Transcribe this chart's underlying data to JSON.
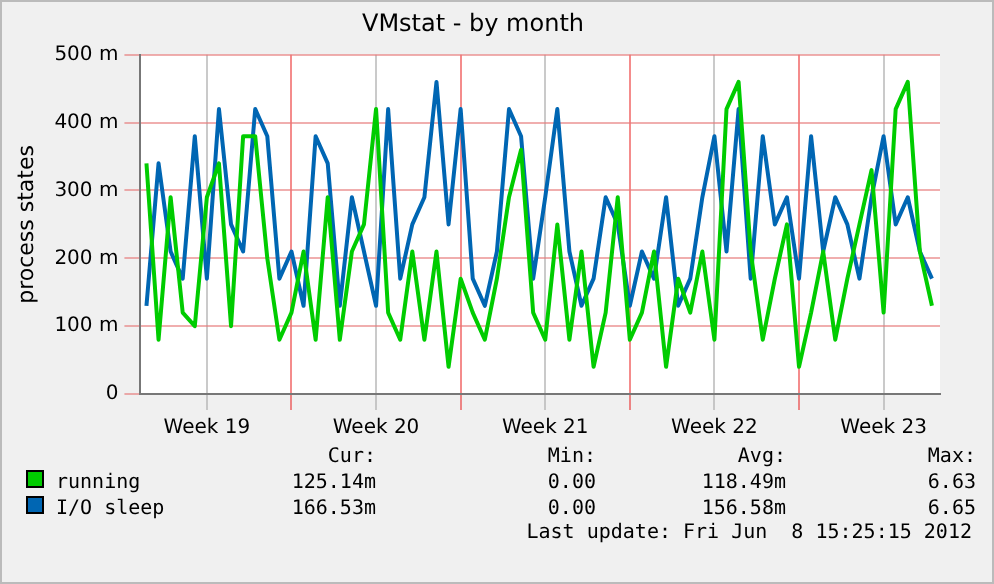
{
  "chart_data": {
    "type": "line",
    "title": "VMstat - by month",
    "ylabel": "process states",
    "x": [
      "2012-05-08T00:00",
      "2012-05-08T12:00",
      "2012-05-09T00:00",
      "2012-05-09T12:00",
      "2012-05-10T00:00",
      "2012-05-10T12:00",
      "2012-05-11T00:00",
      "2012-05-11T12:00",
      "2012-05-12T00:00",
      "2012-05-12T12:00",
      "2012-05-13T00:00",
      "2012-05-13T12:00",
      "2012-05-14T00:00",
      "2012-05-14T12:00",
      "2012-05-15T00:00",
      "2012-05-15T12:00",
      "2012-05-16T00:00",
      "2012-05-16T12:00",
      "2012-05-17T00:00",
      "2012-05-17T12:00",
      "2012-05-18T00:00",
      "2012-05-18T12:00",
      "2012-05-19T00:00",
      "2012-05-19T12:00",
      "2012-05-20T00:00",
      "2012-05-20T12:00",
      "2012-05-21T00:00",
      "2012-05-21T12:00",
      "2012-05-22T00:00",
      "2012-05-22T12:00",
      "2012-05-23T00:00",
      "2012-05-23T12:00",
      "2012-05-24T00:00",
      "2012-05-24T12:00",
      "2012-05-25T00:00",
      "2012-05-25T12:00",
      "2012-05-26T00:00",
      "2012-05-26T12:00",
      "2012-05-27T00:00",
      "2012-05-27T12:00",
      "2012-05-28T00:00",
      "2012-05-28T12:00",
      "2012-05-29T00:00",
      "2012-05-29T12:00",
      "2012-05-30T00:00",
      "2012-05-30T12:00",
      "2012-05-31T00:00",
      "2012-05-31T12:00",
      "2012-06-01T00:00",
      "2012-06-01T12:00",
      "2012-06-02T00:00",
      "2012-06-02T12:00",
      "2012-06-03T00:00",
      "2012-06-03T12:00",
      "2012-06-04T00:00",
      "2012-06-04T12:00",
      "2012-06-05T00:00",
      "2012-06-05T12:00",
      "2012-06-06T00:00",
      "2012-06-06T12:00",
      "2012-06-07T00:00",
      "2012-06-07T12:00",
      "2012-06-08T00:00",
      "2012-06-08T12:00",
      "2012-06-09T00:00",
      "2012-06-09T12:00"
    ],
    "series": [
      {
        "name": "running",
        "color": "#00cc00",
        "values": [
          340,
          80,
          290,
          120,
          100,
          290,
          340,
          100,
          380,
          380,
          200,
          80,
          120,
          210,
          80,
          290,
          80,
          210,
          250,
          420,
          120,
          80,
          210,
          80,
          210,
          40,
          170,
          120,
          80,
          170,
          290,
          360,
          120,
          80,
          250,
          80,
          210,
          40,
          120,
          290,
          80,
          120,
          210,
          40,
          170,
          120,
          210,
          80,
          420,
          460,
          210,
          80,
          170,
          250,
          40,
          120,
          210,
          80,
          170,
          250,
          330,
          120,
          420,
          460,
          210,
          130
        ]
      },
      {
        "name": "I/O sleep",
        "color": "#0066b3",
        "values": [
          130,
          340,
          210,
          170,
          380,
          170,
          420,
          250,
          210,
          420,
          380,
          170,
          210,
          130,
          380,
          340,
          130,
          290,
          210,
          130,
          420,
          170,
          250,
          290,
          460,
          250,
          420,
          170,
          130,
          210,
          420,
          380,
          170,
          290,
          420,
          210,
          130,
          170,
          290,
          250,
          130,
          210,
          170,
          290,
          130,
          170,
          290,
          380,
          210,
          420,
          170,
          380,
          250,
          290,
          170,
          380,
          210,
          290,
          250,
          170,
          290,
          380,
          250,
          290,
          210,
          170
        ]
      }
    ],
    "xlim": [
      "2012-05-07T18:00",
      "2012-06-09T20:00"
    ],
    "xticks": [
      {
        "value": "2012-05-10T12:00",
        "label": "Week 19"
      },
      {
        "value": "2012-05-14T00:00",
        "label": null
      },
      {
        "value": "2012-05-17T12:00",
        "label": "Week 20"
      },
      {
        "value": "2012-05-21T00:00",
        "label": null
      },
      {
        "value": "2012-05-24T12:00",
        "label": "Week 21"
      },
      {
        "value": "2012-05-28T00:00",
        "label": null
      },
      {
        "value": "2012-05-31T12:00",
        "label": "Week 22"
      },
      {
        "value": "2012-06-04T00:00",
        "label": null
      },
      {
        "value": "2012-06-07T12:00",
        "label": "Week 23"
      }
    ],
    "ylim": [
      0,
      500
    ],
    "yticks": [
      0,
      {
        "value": 100,
        "label": "100 m"
      },
      {
        "value": 200,
        "label": "200 m"
      },
      {
        "value": 300,
        "label": "300 m"
      },
      {
        "value": 400,
        "label": "400 m"
      },
      {
        "value": 500,
        "label": "500 m"
      }
    ],
    "grid": true,
    "legend": "bottom",
    "marker": "none",
    "line_style": "solid",
    "annotations": [
      "Cur:",
      "Min:",
      "Avg:",
      "Max:",
      "125.14m",
      "0.00",
      "118.49m",
      "6.63",
      "166.53m",
      "0.00",
      "156.58m",
      "6.65",
      "Last update: Fri Jun  8 15:25:15 2012"
    ]
  }
}
